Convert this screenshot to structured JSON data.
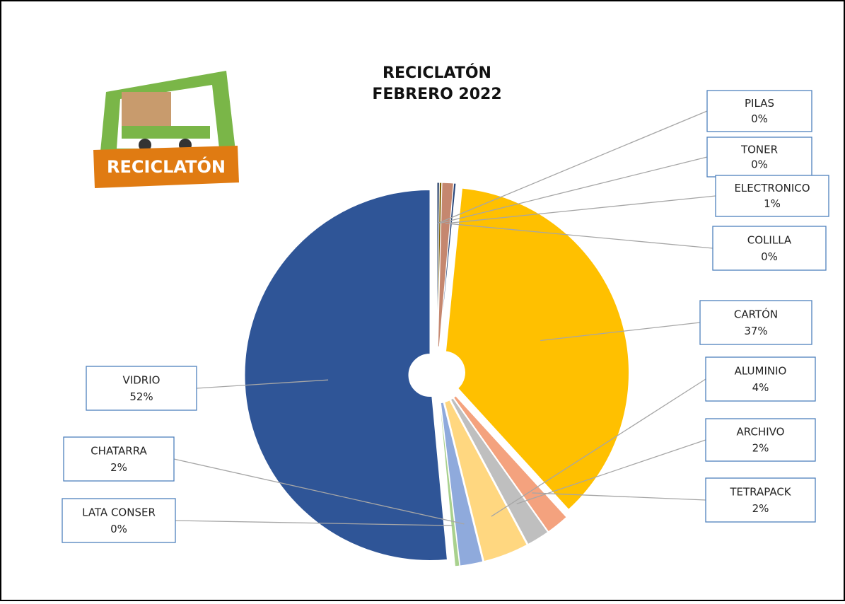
{
  "logo_text": "RECICLATÓN",
  "chart_data": {
    "type": "pie",
    "title": [
      "RECICLATÓN",
      "FEBRERO 2022"
    ],
    "categories": [
      "PILAS",
      "TONER",
      "ELECTRONICO",
      "COLILLA",
      "CARTÓN",
      "TETRAPACK",
      "ARCHIVO",
      "ALUMINIO",
      "CHATARRA",
      "LATA CONSER",
      "VIDRIO"
    ],
    "values": [
      0.2,
      0.2,
      1,
      0.2,
      37,
      2,
      2,
      4,
      2,
      0.4,
      52
    ],
    "value_labels": [
      "0%",
      "0%",
      "1%",
      "0%",
      "37%",
      "2%",
      "2%",
      "4%",
      "2%",
      "0%",
      "52%"
    ],
    "colors": [
      "#1f3864",
      "#7f6000",
      "#c5876f",
      "#264478",
      "#ffc000",
      "#f4a27e",
      "#bfbfbf",
      "#ffd780",
      "#8faadc",
      "#a9d18e",
      "#2f5597"
    ]
  }
}
